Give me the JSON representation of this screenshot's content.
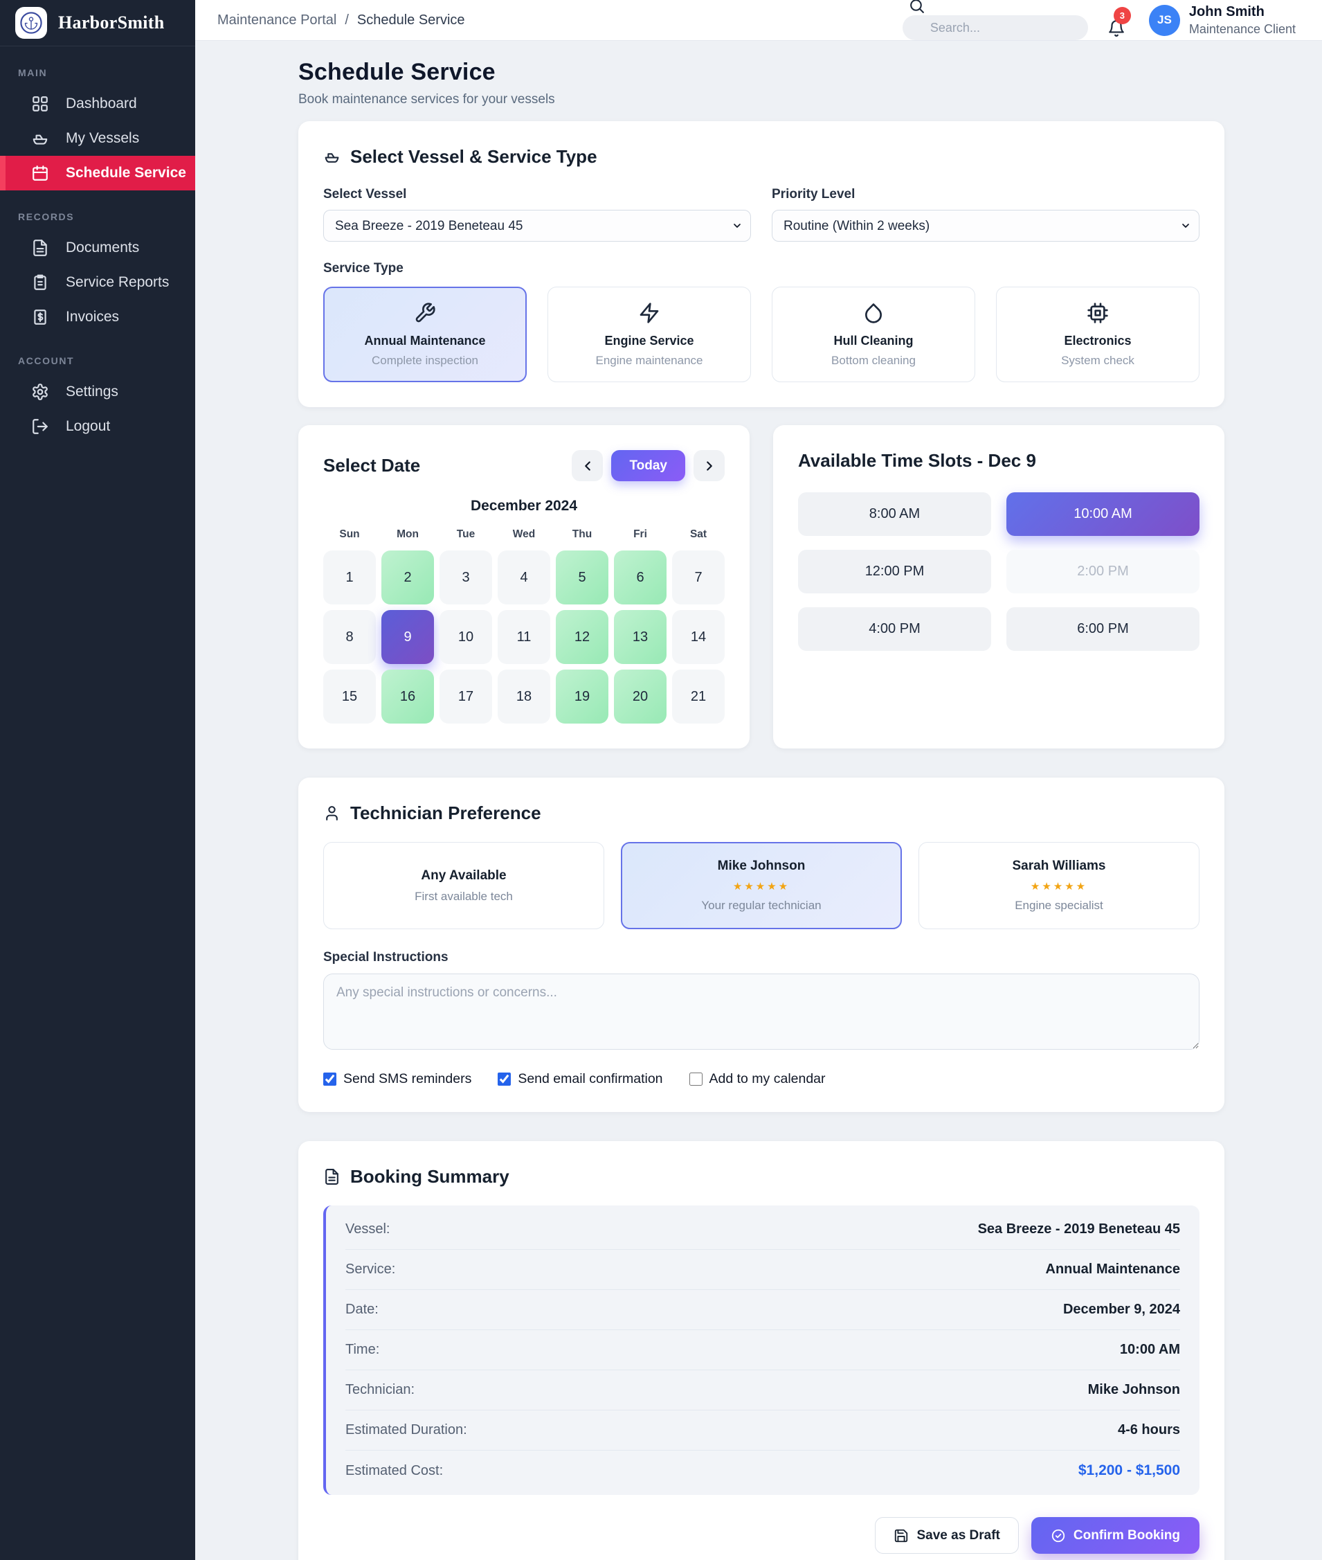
{
  "brand": {
    "name": "HarborSmith"
  },
  "sidebar": {
    "sections": [
      {
        "label": "MAIN",
        "items": [
          {
            "icon": "dashboard",
            "label": "Dashboard",
            "active": false
          },
          {
            "icon": "boat",
            "label": "My Vessels",
            "active": false
          },
          {
            "icon": "calendar",
            "label": "Schedule Service",
            "active": true
          }
        ]
      },
      {
        "label": "RECORDS",
        "items": [
          {
            "icon": "file",
            "label": "Documents",
            "active": false
          },
          {
            "icon": "clipboard",
            "label": "Service Reports",
            "active": false
          },
          {
            "icon": "invoice",
            "label": "Invoices",
            "active": false
          }
        ]
      },
      {
        "label": "ACCOUNT",
        "items": [
          {
            "icon": "gear",
            "label": "Settings",
            "active": false
          },
          {
            "icon": "logout",
            "label": "Logout",
            "active": false
          }
        ]
      }
    ]
  },
  "header": {
    "breadcrumb": {
      "parent": "Maintenance Portal",
      "separator": "/",
      "current": "Schedule Service"
    },
    "search_placeholder": "Search...",
    "notification_count": "3",
    "user": {
      "initials": "JS",
      "name": "John Smith",
      "role": "Maintenance Client"
    }
  },
  "page": {
    "title": "Schedule Service",
    "subtitle": "Book maintenance services for your vessels"
  },
  "vessel_card": {
    "title": "Select Vessel & Service Type",
    "vessel_label": "Select Vessel",
    "vessel_value": "Sea Breeze - 2019 Beneteau 45",
    "priority_label": "Priority Level",
    "priority_value": "Routine (Within 2 weeks)",
    "service_type_label": "Service Type",
    "services": [
      {
        "icon": "wrench",
        "name": "Annual Maintenance",
        "desc": "Complete inspection",
        "selected": true
      },
      {
        "icon": "bolt",
        "name": "Engine Service",
        "desc": "Engine maintenance",
        "selected": false
      },
      {
        "icon": "droplet",
        "name": "Hull Cleaning",
        "desc": "Bottom cleaning",
        "selected": false
      },
      {
        "icon": "chip",
        "name": "Electronics",
        "desc": "System check",
        "selected": false
      }
    ]
  },
  "calendar_card": {
    "title": "Select Date",
    "today_label": "Today",
    "month": "December 2024",
    "weekdays": [
      "Sun",
      "Mon",
      "Tue",
      "Wed",
      "Thu",
      "Fri",
      "Sat"
    ],
    "days": [
      {
        "n": "1",
        "state": "default"
      },
      {
        "n": "2",
        "state": "available"
      },
      {
        "n": "3",
        "state": "default"
      },
      {
        "n": "4",
        "state": "default"
      },
      {
        "n": "5",
        "state": "available"
      },
      {
        "n": "6",
        "state": "available"
      },
      {
        "n": "7",
        "state": "default"
      },
      {
        "n": "8",
        "state": "default"
      },
      {
        "n": "9",
        "state": "selected"
      },
      {
        "n": "10",
        "state": "default"
      },
      {
        "n": "11",
        "state": "default"
      },
      {
        "n": "12",
        "state": "available"
      },
      {
        "n": "13",
        "state": "available"
      },
      {
        "n": "14",
        "state": "default"
      },
      {
        "n": "15",
        "state": "default"
      },
      {
        "n": "16",
        "state": "available"
      },
      {
        "n": "17",
        "state": "default"
      },
      {
        "n": "18",
        "state": "default"
      },
      {
        "n": "19",
        "state": "available"
      },
      {
        "n": "20",
        "state": "available"
      },
      {
        "n": "21",
        "state": "default"
      }
    ]
  },
  "timeslots_card": {
    "title": "Available Time Slots - Dec 9",
    "slots": [
      {
        "time": "8:00 AM",
        "state": "default"
      },
      {
        "time": "10:00 AM",
        "state": "selected"
      },
      {
        "time": "12:00 PM",
        "state": "default"
      },
      {
        "time": "2:00 PM",
        "state": "disabled"
      },
      {
        "time": "4:00 PM",
        "state": "default"
      },
      {
        "time": "6:00 PM",
        "state": "default"
      }
    ]
  },
  "technician_card": {
    "title": "Technician Preference",
    "options": [
      {
        "name": "Any Available",
        "stars": "",
        "desc": "First available tech",
        "selected": false
      },
      {
        "name": "Mike Johnson",
        "stars": "★★★★★",
        "desc": "Your regular technician",
        "selected": true
      },
      {
        "name": "Sarah Williams",
        "stars": "★★★★★",
        "desc": "Engine specialist",
        "selected": false
      }
    ],
    "instructions_label": "Special Instructions",
    "instructions_placeholder": "Any special instructions or concerns...",
    "checkboxes": [
      {
        "label": "Send SMS reminders",
        "checked": true
      },
      {
        "label": "Send email confirmation",
        "checked": true
      },
      {
        "label": "Add to my calendar",
        "checked": false
      }
    ]
  },
  "summary_card": {
    "title": "Booking Summary",
    "rows": [
      {
        "label": "Vessel:",
        "value": "Sea Breeze - 2019 Beneteau 45",
        "cost": false
      },
      {
        "label": "Service:",
        "value": "Annual Maintenance",
        "cost": false
      },
      {
        "label": "Date:",
        "value": "December 9, 2024",
        "cost": false
      },
      {
        "label": "Time:",
        "value": "10:00 AM",
        "cost": false
      },
      {
        "label": "Technician:",
        "value": "Mike Johnson",
        "cost": false
      },
      {
        "label": "Estimated Duration:",
        "value": "4-6 hours",
        "cost": false
      },
      {
        "label": "Estimated Cost:",
        "value": "$1,200 - $1,500",
        "cost": true
      }
    ],
    "save_label": "Save as Draft",
    "confirm_label": "Confirm Booking"
  },
  "colors": {
    "sidebar_bg": "#1c2433",
    "active_nav_red": "#e11d48",
    "accent_purple_start": "#6366f1",
    "accent_purple_end": "#8b5cf6",
    "available_green": "#a9eec0",
    "cost_blue": "#2563eb",
    "avatar_blue": "#3b82f6",
    "badge_red": "#ef4444",
    "star_amber": "#f2a413",
    "checkbox_blue": "#2563eb"
  }
}
